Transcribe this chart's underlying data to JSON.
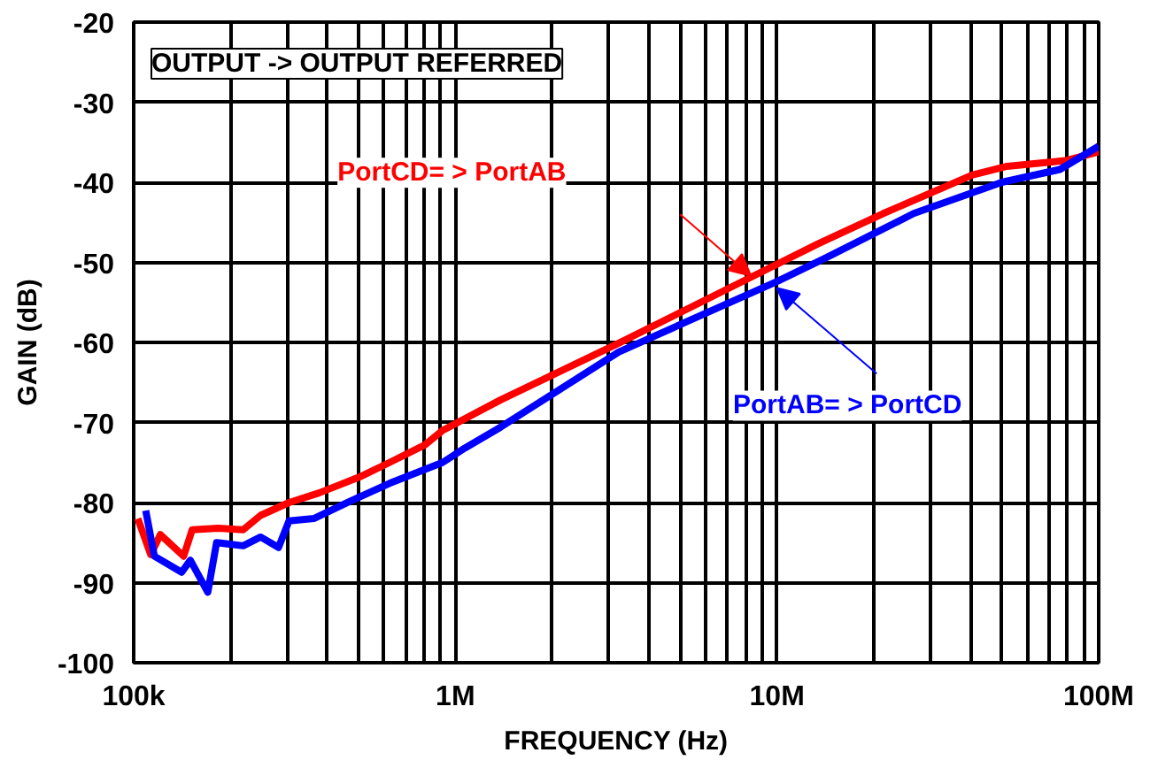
{
  "chart_data": {
    "type": "line",
    "xlabel": "FREQUENCY (Hz)",
    "ylabel": "GAIN (dB)",
    "log": "x",
    "xlim": [
      100000,
      100000000
    ],
    "ylim": [
      -100,
      -20
    ],
    "xticks": [
      {
        "value": 100000,
        "label": "100k"
      },
      {
        "value": 200000,
        "label": null
      },
      {
        "value": 300000,
        "label": null
      },
      {
        "value": 400000,
        "label": null
      },
      {
        "value": 500000,
        "label": null
      },
      {
        "value": 600000,
        "label": null
      },
      {
        "value": 700000,
        "label": null
      },
      {
        "value": 800000,
        "label": null
      },
      {
        "value": 900000,
        "label": null
      },
      {
        "value": 1000000,
        "label": "1M"
      },
      {
        "value": 2000000,
        "label": null
      },
      {
        "value": 3000000,
        "label": null
      },
      {
        "value": 4000000,
        "label": null
      },
      {
        "value": 5000000,
        "label": null
      },
      {
        "value": 6000000,
        "label": null
      },
      {
        "value": 7000000,
        "label": null
      },
      {
        "value": 8000000,
        "label": null
      },
      {
        "value": 9000000,
        "label": null
      },
      {
        "value": 10000000,
        "label": "10M"
      },
      {
        "value": 20000000,
        "label": null
      },
      {
        "value": 30000000,
        "label": null
      },
      {
        "value": 40000000,
        "label": null
      },
      {
        "value": 50000000,
        "label": null
      },
      {
        "value": 60000000,
        "label": null
      },
      {
        "value": 70000000,
        "label": null
      },
      {
        "value": 80000000,
        "label": null
      },
      {
        "value": 90000000,
        "label": null
      },
      {
        "value": 100000000,
        "label": "100M"
      }
    ],
    "yticks": [
      -100,
      -90,
      -80,
      -70,
      -60,
      -50,
      -40,
      -30,
      -20
    ],
    "grid": true,
    "line_style": "solid",
    "annotations": [
      "OUTPUT -> OUTPUT REFERRED"
    ],
    "series": [
      {
        "name": "PortCD= > PortAB",
        "color": "#ff0000",
        "x": [
          103000,
          113000,
          121000,
          143000,
          152000,
          183000,
          219000,
          248000,
          304000,
          377000,
          504000,
          624000,
          804000,
          912000,
          1380000,
          3220000,
          8850000,
          13400000,
          21400000,
          40400000,
          51900000,
          78800000,
          100000000
        ],
        "values": [
          -82,
          -86.5,
          -84,
          -86.7,
          -83.4,
          -83.2,
          -83.4,
          -81.6,
          -80,
          -78.8,
          -76.8,
          -75,
          -72.8,
          -71,
          -67.2,
          -60.1,
          -51.3,
          -47.7,
          -43.9,
          -39.1,
          -38,
          -37.3,
          -36.2
        ]
      },
      {
        "name": "PortAB= > PortCD",
        "color": "#0000ff",
        "x": [
          109000,
          116000,
          141000,
          150000,
          170000,
          181000,
          219000,
          248000,
          282000,
          304000,
          363000,
          467000,
          624000,
          912000,
          1070000,
          1380000,
          3220000,
          10000000,
          14100000,
          26600000,
          50000000,
          75800000,
          100000000
        ],
        "values": [
          -81,
          -86.7,
          -88.7,
          -87.2,
          -91.2,
          -85,
          -85.4,
          -84.3,
          -85.6,
          -82.3,
          -82,
          -79.9,
          -77.6,
          -75,
          -73.2,
          -70.6,
          -61.2,
          -52.4,
          -49.5,
          -43.9,
          -40,
          -38.4,
          -35.5
        ]
      }
    ]
  }
}
